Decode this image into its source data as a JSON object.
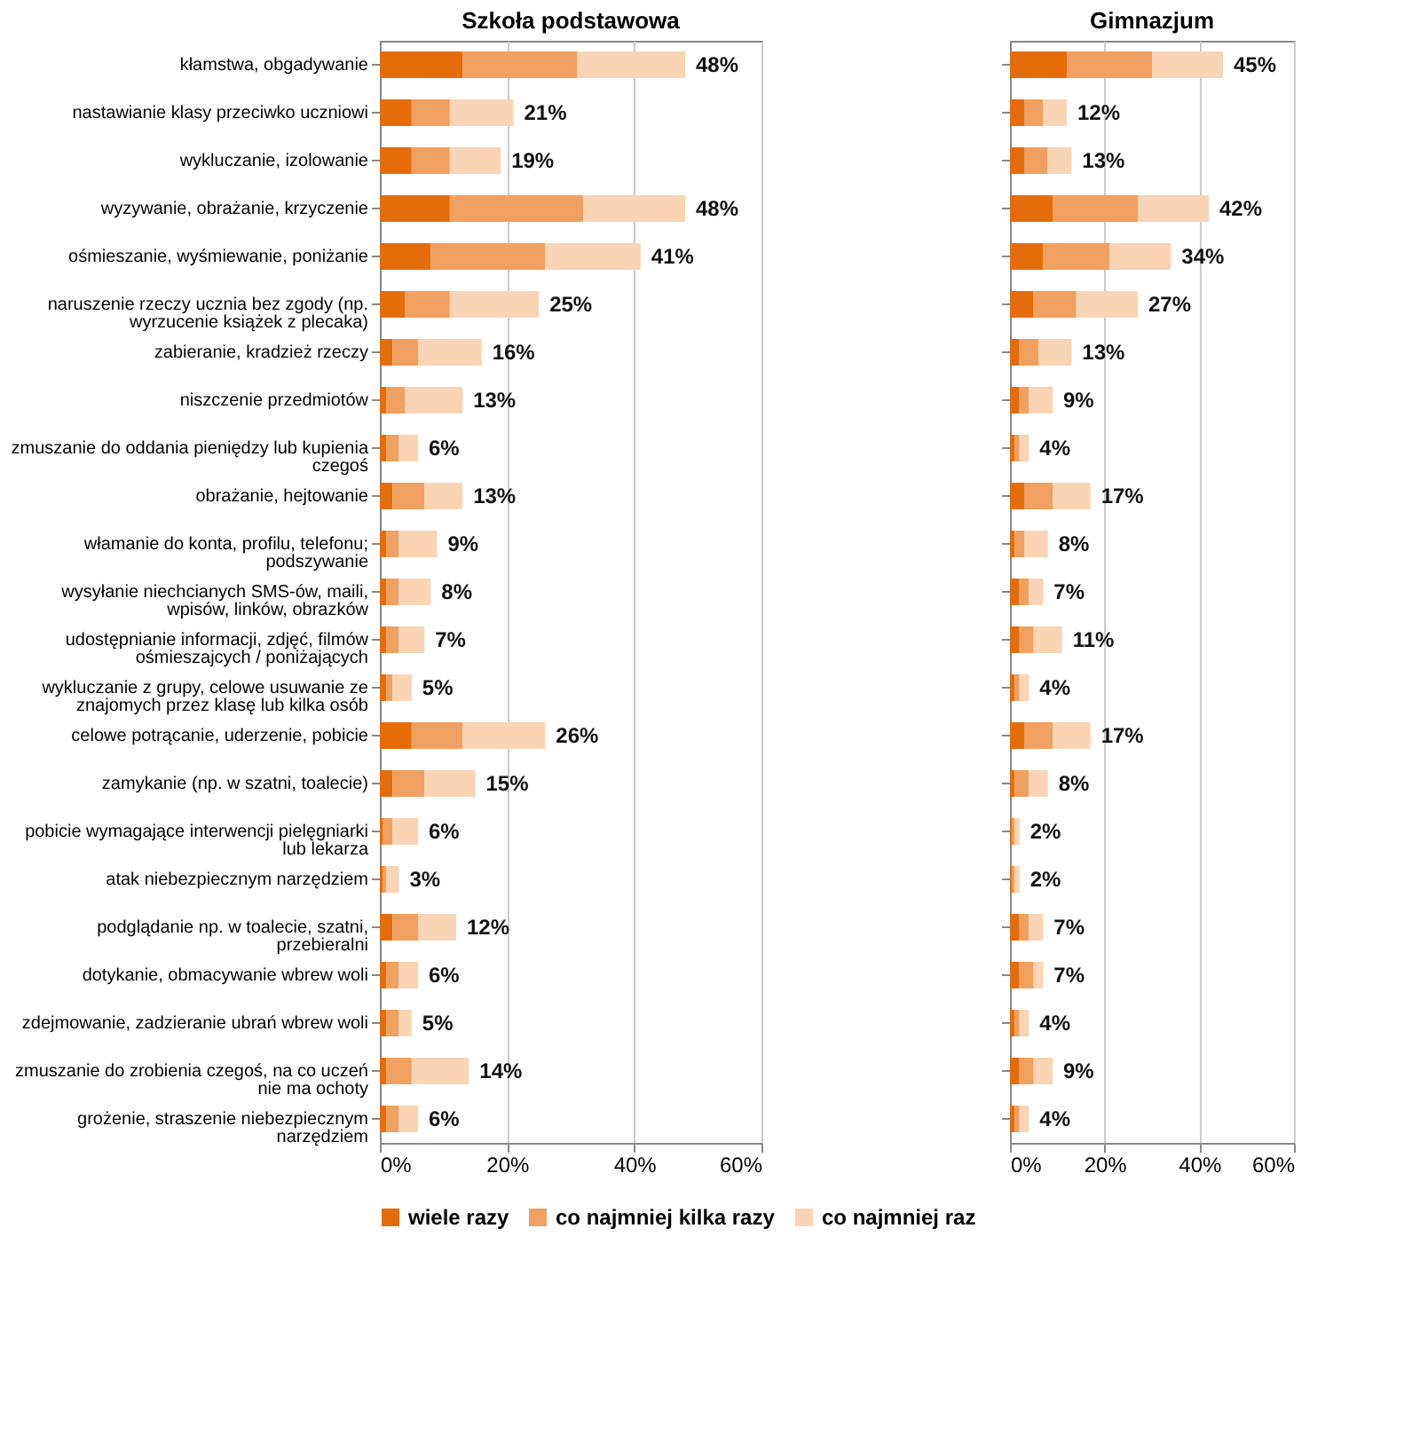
{
  "chart_data": [
    {
      "type": "bar",
      "orientation": "horizontal",
      "stacked": true,
      "title": "Szkoła podstawowa",
      "categories": [
        "kłamstwa, obgadywanie",
        "nastawianie klasy przeciwko uczniowi",
        "wykluczanie, izolowanie",
        "wyzywanie, obrażanie, krzyczenie",
        "ośmieszanie, wyśmiewanie, poniżanie",
        "naruszenie rzeczy ucznia bez zgody (np. wyrzucenie książek z plecaka)",
        "zabieranie, kradzież rzeczy",
        "niszczenie przedmiotów",
        "zmuszanie do oddania pieniędzy lub kupienia czegoś",
        "obrażanie, hejtowanie",
        "włamanie do konta, profilu, telefonu; podszywanie",
        "wysyłanie niechcianych  SMS-ów, maili, wpisów, linków, obrazków",
        "udostępnianie informacji, zdjęć, filmów ośmieszajcych / poniżających",
        "wykluczanie z grupy, celowe usuwanie ze znajomych przez klasę lub kilka osób",
        "celowe potrącanie, uderzenie, pobicie",
        "zamykanie (np. w szatni, toalecie)",
        "pobicie wymagające interwencji pielęgniarki lub lekarza",
        "atak niebezpiecznym narzędziem",
        "podglądanie np. w toalecie, szatni, przebieralni",
        "dotykanie, obmacywanie wbrew woli",
        "zdejmowanie, zadzieranie ubrań wbrew woli",
        "zmuszanie do zrobienia czegoś, na co uczeń nie ma ochoty",
        "grożenie, straszenie niebezpiecznym narzędziem"
      ],
      "series": [
        {
          "name": "wiele razy",
          "color": "#e46c0a",
          "values": [
            13,
            5,
            5,
            11,
            8,
            4,
            2,
            1,
            1,
            2,
            1,
            1,
            1,
            1,
            5,
            2,
            0.5,
            0.5,
            2,
            1,
            1,
            1,
            1
          ]
        },
        {
          "name": "co najmniej kilka razy",
          "color": "#f0a060",
          "values": [
            18,
            6,
            6,
            21,
            18,
            7,
            4,
            3,
            2,
            5,
            2,
            2,
            2,
            1,
            8,
            5,
            1.5,
            0.5,
            4,
            2,
            2,
            4,
            2
          ]
        },
        {
          "name": "co najmniej raz",
          "color": "#f9d5b5",
          "values": [
            17,
            10,
            8,
            16,
            15,
            14,
            10,
            9,
            3,
            6,
            6,
            5,
            4,
            3,
            13,
            8,
            4,
            2,
            6,
            3,
            2,
            9,
            3
          ]
        }
      ],
      "totals": [
        "48%",
        "21%",
        "19%",
        "48%",
        "41%",
        "25%",
        "16%",
        "13%",
        "6%",
        "13%",
        "9%",
        "8%",
        "7%",
        "5%",
        "26%",
        "15%",
        "6%",
        "3%",
        "12%",
        "6%",
        "5%",
        "14%",
        "6%"
      ],
      "xlim": [
        0,
        60
      ],
      "xticks": [
        {
          "value": 0,
          "label": "0%"
        },
        {
          "value": 20,
          "label": "20%"
        },
        {
          "value": 40,
          "label": "40%"
        },
        {
          "value": 60,
          "label": "60%"
        }
      ],
      "grid": "x",
      "legend": "bottom"
    },
    {
      "type": "bar",
      "orientation": "horizontal",
      "stacked": true,
      "title": "Gimnazjum",
      "categories": [
        null,
        null,
        null,
        null,
        null,
        null,
        null,
        null,
        null,
        null,
        null,
        null,
        null,
        null,
        null,
        null,
        null,
        null,
        null,
        null,
        null,
        null,
        null
      ],
      "series": [
        {
          "color": "#e46c0a",
          "values": [
            12,
            3,
            3,
            9,
            7,
            5,
            2,
            2,
            1,
            3,
            1,
            2,
            2,
            1,
            3,
            1,
            0.5,
            0.5,
            2,
            2,
            1,
            2,
            1
          ]
        },
        {
          "color": "#f0a060",
          "values": [
            18,
            4,
            5,
            18,
            14,
            9,
            4,
            2,
            1,
            6,
            2,
            2,
            3,
            1,
            6,
            3,
            0.5,
            0.5,
            2,
            3,
            1,
            3,
            1
          ]
        },
        {
          "color": "#f9d5b5",
          "values": [
            15,
            5,
            5,
            15,
            13,
            13,
            7,
            5,
            2,
            8,
            5,
            3,
            6,
            2,
            8,
            4,
            1,
            1,
            3,
            2,
            2,
            4,
            2
          ]
        }
      ],
      "totals": [
        "45%",
        "12%",
        "13%",
        "42%",
        "34%",
        "27%",
        "13%",
        "9%",
        "4%",
        "17%",
        "8%",
        "7%",
        "11%",
        "4%",
        "17%",
        "8%",
        "2%",
        "2%",
        "7%",
        "7%",
        "4%",
        "9%",
        "4%"
      ],
      "xlim": [
        0,
        60
      ],
      "xticks": [
        {
          "value": 0,
          "label": "0%"
        },
        {
          "value": 20,
          "label": "20%"
        },
        {
          "value": 40,
          "label": "40%"
        },
        {
          "value": 60,
          "label": "60%"
        }
      ],
      "grid": "x",
      "tick_labels": "x"
    }
  ]
}
